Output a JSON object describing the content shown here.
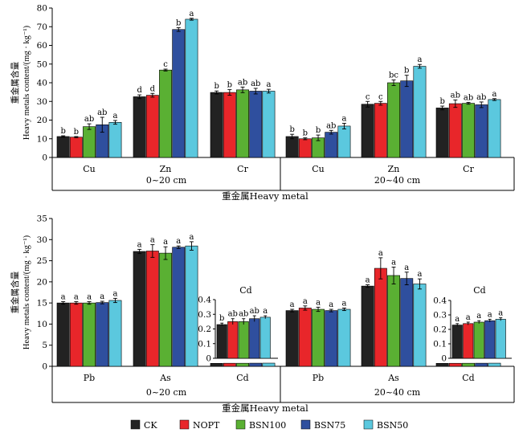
{
  "legend": [
    {
      "name": "CK",
      "color": "#222222"
    },
    {
      "name": "NOPT",
      "color": "#e8262a"
    },
    {
      "name": "BSN100",
      "color": "#5ab033"
    },
    {
      "name": "BSN75",
      "color": "#2f4f9e"
    },
    {
      "name": "BSN50",
      "color": "#5bc8de"
    }
  ],
  "chart_data": [
    {
      "type": "bar",
      "ylabel_cn": "重金属含量",
      "ylabel_en": "Heavy metals content/(mg · kg⁻¹)",
      "xlabel": "重金属Heavy metal",
      "ylim": [
        0,
        80
      ],
      "yticks": [
        0,
        10,
        20,
        30,
        40,
        50,
        60,
        70,
        80
      ],
      "groups": [
        "0~20 cm",
        "20~40 cm"
      ],
      "categories": [
        "Cu",
        "Zn",
        "Cr",
        "Cu",
        "Zn",
        "Cr"
      ],
      "series": [
        {
          "name": "CK",
          "values": [
            11.2,
            32.5,
            34.8,
            11.2,
            28.5,
            26.5
          ],
          "errors": [
            0.4,
            1.0,
            0.8,
            1.2,
            1.5,
            1.0
          ],
          "sig": [
            "b",
            "d",
            "b",
            "b",
            "c",
            "b"
          ]
        },
        {
          "name": "NOPT",
          "values": [
            10.9,
            33.3,
            34.8,
            10.0,
            29.0,
            28.8
          ],
          "errors": [
            0.3,
            1.0,
            1.5,
            0.5,
            1.0,
            2.0
          ],
          "sig": [
            "b",
            "d",
            "b",
            "b",
            "c",
            "ab"
          ]
        },
        {
          "name": "BSN100",
          "values": [
            16.5,
            46.8,
            36.2,
            10.5,
            40.0,
            29.0
          ],
          "errors": [
            1.5,
            0.5,
            1.5,
            1.5,
            1.5,
            0.5
          ],
          "sig": [
            "ab",
            "c",
            "ab",
            "b",
            "bc",
            "ab"
          ]
        },
        {
          "name": "BSN75",
          "values": [
            17.5,
            68.5,
            35.5,
            13.5,
            41.0,
            28.2
          ],
          "errors": [
            4.0,
            1.0,
            1.5,
            1.0,
            3.0,
            1.5
          ],
          "sig": [
            "ab",
            "b",
            "ab",
            "ab",
            "b",
            "ab"
          ]
        },
        {
          "name": "BSN50",
          "values": [
            18.8,
            74.0,
            35.5,
            16.8,
            48.8,
            31.0
          ],
          "errors": [
            1.0,
            0.5,
            1.0,
            1.5,
            1.0,
            0.5
          ],
          "sig": [
            "a",
            "a",
            "a",
            "a",
            "a",
            "a"
          ]
        }
      ]
    },
    {
      "type": "bar",
      "ylabel_cn": "重金属含量",
      "ylabel_en": "Heavy metals content/(mg · kg⁻¹)",
      "xlabel": "重金属Heavy metal",
      "ylim": [
        0,
        35
      ],
      "yticks": [
        0,
        5,
        10,
        15,
        20,
        25,
        30,
        35
      ],
      "groups": [
        "0~20 cm",
        "20~40 cm"
      ],
      "categories": [
        "Pb",
        "As",
        "Cd",
        "Pb",
        "As",
        "Cd"
      ],
      "series": [
        {
          "name": "CK",
          "values": [
            15.0,
            27.2,
            0.23,
            13.2,
            19.0,
            0.23
          ],
          "errors": [
            0.3,
            0.5,
            0.01,
            0.3,
            0.3,
            0.01
          ],
          "sig": [
            "a",
            "a",
            "b",
            "a",
            "a",
            "a"
          ]
        },
        {
          "name": "NOPT",
          "values": [
            15.0,
            27.3,
            0.25,
            13.8,
            23.2,
            0.24
          ],
          "errors": [
            0.3,
            1.5,
            0.02,
            0.5,
            2.5,
            0.01
          ],
          "sig": [
            "a",
            "a",
            "ab",
            "a",
            "a",
            "a"
          ]
        },
        {
          "name": "BSN100",
          "values": [
            15.0,
            26.8,
            0.25,
            13.5,
            21.5,
            0.25
          ],
          "errors": [
            0.3,
            1.5,
            0.02,
            0.5,
            2.0,
            0.01
          ],
          "sig": [
            "a",
            "a",
            "ab",
            "a",
            "a",
            "a"
          ]
        },
        {
          "name": "BSN75",
          "values": [
            15.1,
            28.2,
            0.27,
            13.2,
            20.8,
            0.26
          ],
          "errors": [
            0.3,
            0.3,
            0.02,
            0.3,
            1.5,
            0.01
          ],
          "sig": [
            "a",
            "a",
            "ab",
            "a",
            "a",
            "a"
          ]
        },
        {
          "name": "BSN50",
          "values": [
            15.6,
            28.5,
            0.28,
            13.5,
            19.5,
            0.27
          ],
          "errors": [
            0.5,
            1.0,
            0.01,
            0.3,
            1.2,
            0.01
          ],
          "sig": [
            "a",
            "a",
            "a",
            "a",
            "a",
            "a"
          ]
        }
      ],
      "insets": [
        {
          "title": "Cd",
          "group": "0~20 cm",
          "ylim": [
            0,
            0.4
          ],
          "yticks": [
            0,
            0.1,
            0.2,
            0.3,
            0.4
          ],
          "ytick_labels": [
            "0",
            "0.1",
            "0.2",
            "0.3",
            "0.4"
          ]
        },
        {
          "title": "Cd",
          "group": "20~40 cm",
          "ylim": [
            0,
            0.4
          ],
          "yticks": [
            0,
            0.1,
            0.2,
            0.3,
            0.4
          ],
          "ytick_labels": [
            "0",
            "0.1",
            "0.2",
            "0.3",
            "0.4"
          ]
        }
      ]
    }
  ]
}
